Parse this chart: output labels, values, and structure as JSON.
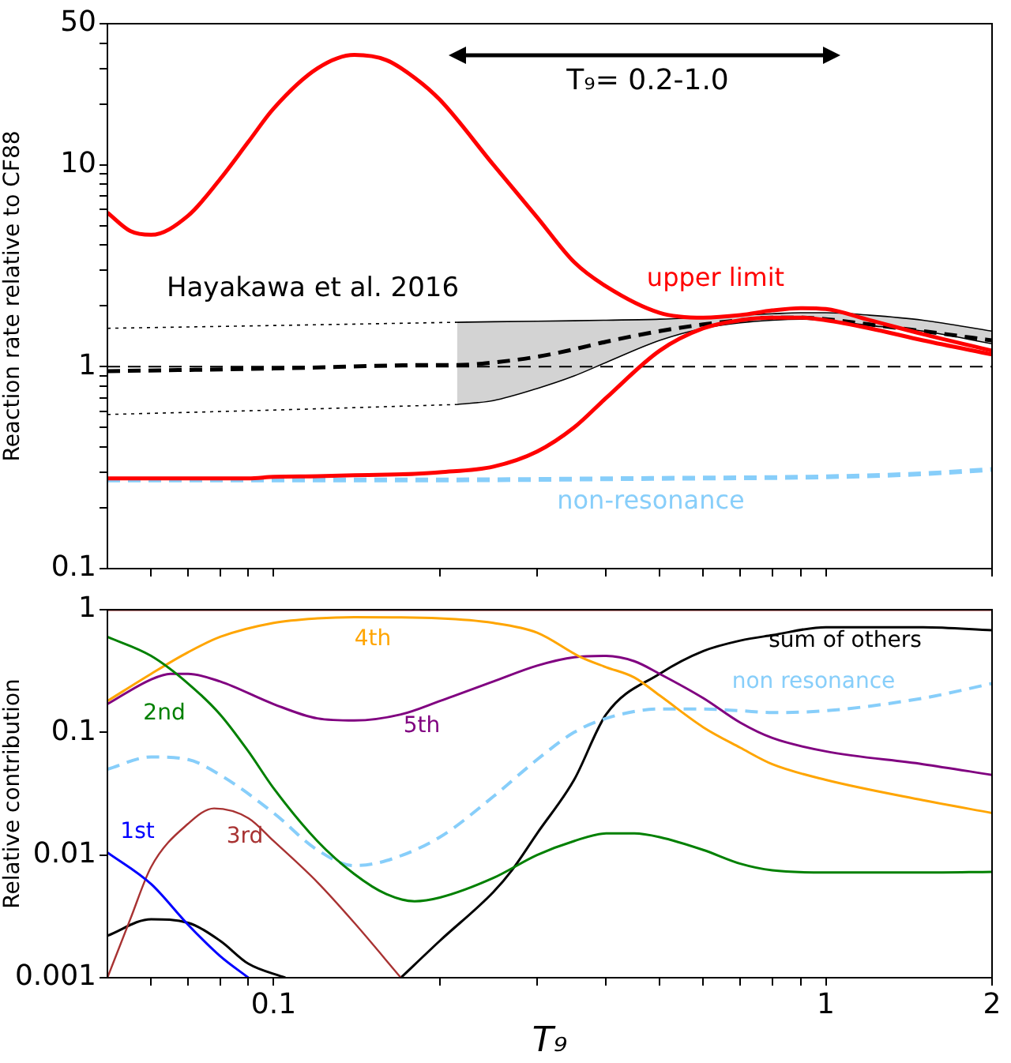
{
  "chart_data": [
    {
      "type": "line",
      "ylabel": "Reaction rate relative to CF88",
      "log": "xy",
      "xlim": [
        0.05,
        2
      ],
      "ylim": [
        0.1,
        50
      ],
      "xticks": [
        {
          "value": 0.06,
          "label": null
        },
        {
          "value": 0.07,
          "label": null
        },
        {
          "value": 0.08,
          "label": null
        },
        {
          "value": 0.09,
          "label": null
        },
        0.1,
        {
          "value": 0.2,
          "label": null
        },
        {
          "value": 0.3,
          "label": null
        },
        {
          "value": 0.4,
          "label": null
        },
        {
          "value": 0.5,
          "label": null
        },
        {
          "value": 0.6,
          "label": null
        },
        {
          "value": 0.7,
          "label": null
        },
        {
          "value": 0.8,
          "label": null
        },
        {
          "value": 0.9,
          "label": null
        },
        1,
        2
      ],
      "yticks": [
        0.1,
        {
          "value": 0.2,
          "label": null
        },
        {
          "value": 0.3,
          "label": null
        },
        {
          "value": 0.4,
          "label": null
        },
        {
          "value": 0.5,
          "label": null
        },
        {
          "value": 0.6,
          "label": null
        },
        {
          "value": 0.7,
          "label": null
        },
        {
          "value": 0.8,
          "label": null
        },
        {
          "value": 0.9,
          "label": null
        },
        1,
        {
          "value": 2,
          "label": null
        },
        {
          "value": 3,
          "label": null
        },
        {
          "value": 4,
          "label": null
        },
        {
          "value": 5,
          "label": null
        },
        {
          "value": 6,
          "label": null
        },
        {
          "value": 7,
          "label": null
        },
        {
          "value": 8,
          "label": null
        },
        {
          "value": 9,
          "label": null
        },
        10,
        {
          "value": 20,
          "label": null
        },
        {
          "value": 30,
          "label": null
        },
        {
          "value": 40,
          "label": null
        },
        50
      ],
      "tick_labels": "y",
      "grid": false,
      "legend": false,
      "marker": "none",
      "ref_lines": [
        {
          "axis": "y",
          "value": 1,
          "color": "#000000",
          "line_style": "dashed"
        }
      ],
      "annotations": [
        "Hayakawa et al. 2016",
        "T₉= 0.2-1.0"
      ],
      "series": [
        {
          "name": "upper limit",
          "color": "#ff0000",
          "line_style": "solid",
          "x": [
            0.05,
            0.055,
            0.06,
            0.07,
            0.08,
            0.09,
            0.1,
            0.12,
            0.14,
            0.16,
            0.18,
            0.2,
            0.25,
            0.3,
            0.35,
            0.4,
            0.5,
            0.6,
            0.7,
            0.8,
            0.9,
            1.0,
            1.2,
            1.5,
            2.0
          ],
          "values": [
            5.8,
            4.7,
            4.5,
            5.6,
            8.5,
            13,
            19,
            30,
            35,
            33,
            27,
            21,
            10,
            5.5,
            3.3,
            2.5,
            1.85,
            1.75,
            1.8,
            1.9,
            1.95,
            1.93,
            1.7,
            1.45,
            1.2
          ]
        },
        {
          "color": "#ff0000",
          "line_style": "solid",
          "x": [
            0.05,
            0.055,
            0.06,
            0.07,
            0.08,
            0.09,
            0.1,
            0.12,
            0.14,
            0.16,
            0.18,
            0.2,
            0.25,
            0.3,
            0.35,
            0.4,
            0.5,
            0.6,
            0.7,
            0.8,
            0.9,
            1.0,
            1.2,
            1.5,
            2.0
          ],
          "values": [
            0.28,
            0.28,
            0.28,
            0.28,
            0.28,
            0.28,
            0.285,
            0.287,
            0.29,
            0.292,
            0.295,
            0.3,
            0.32,
            0.38,
            0.5,
            0.7,
            1.2,
            1.55,
            1.7,
            1.75,
            1.75,
            1.7,
            1.55,
            1.35,
            1.15
          ]
        },
        {
          "color": "#000000",
          "line_style": "dashed",
          "x": [
            0.05,
            0.1,
            0.2,
            0.215,
            0.25,
            0.3,
            0.35,
            0.4,
            0.5,
            0.6,
            0.7,
            0.8,
            0.9,
            1.0,
            1.2,
            1.5,
            2.0
          ],
          "values": [
            0.95,
            0.98,
            1.02,
            1.02,
            1.05,
            1.12,
            1.22,
            1.33,
            1.5,
            1.62,
            1.7,
            1.75,
            1.75,
            1.72,
            1.62,
            1.5,
            1.35
          ],
          "lower": [
            null,
            null,
            null,
            0.65,
            0.68,
            0.78,
            0.9,
            1.05,
            1.35,
            1.55,
            1.65,
            1.7,
            1.72,
            1.7,
            1.6,
            1.5,
            1.3
          ],
          "upper": [
            null,
            null,
            null,
            1.66,
            1.67,
            1.68,
            1.69,
            1.7,
            1.72,
            1.76,
            1.8,
            1.83,
            1.85,
            1.85,
            1.8,
            1.7,
            1.5
          ]
        },
        {
          "color": "#000000",
          "line_style": "dotted",
          "x": [
            0.05,
            0.1,
            0.215
          ],
          "values": [
            1.55,
            1.6,
            1.66
          ]
        },
        {
          "color": "#000000",
          "line_style": "solid",
          "x": [
            0.215,
            0.25,
            0.3,
            0.35,
            0.4,
            0.5,
            0.6,
            0.7,
            0.8,
            0.9,
            1.0,
            1.2,
            1.5,
            2.0
          ],
          "values": [
            1.66,
            1.67,
            1.68,
            1.69,
            1.7,
            1.72,
            1.76,
            1.8,
            1.83,
            1.85,
            1.85,
            1.8,
            1.7,
            1.5
          ]
        },
        {
          "color": "#000000",
          "line_style": "dotted",
          "x": [
            0.05,
            0.1,
            0.215
          ],
          "values": [
            0.58,
            0.61,
            0.65
          ]
        },
        {
          "color": "#000000",
          "line_style": "solid",
          "x": [
            0.215,
            0.25,
            0.3,
            0.35,
            0.4,
            0.5,
            0.6,
            0.7,
            0.8,
            0.9,
            1.0,
            1.2,
            1.5,
            2.0
          ],
          "values": [
            0.65,
            0.68,
            0.78,
            0.9,
            1.05,
            1.35,
            1.55,
            1.65,
            1.7,
            1.72,
            1.7,
            1.6,
            1.5,
            1.3
          ]
        },
        {
          "name": "non-resonance",
          "color": "#87cefa",
          "line_style": "dashed",
          "x": [
            0.05,
            0.1,
            0.2,
            0.5,
            1.0,
            1.5,
            2.0
          ],
          "values": [
            0.275,
            0.275,
            0.275,
            0.28,
            0.285,
            0.295,
            0.31
          ]
        }
      ]
    },
    {
      "type": "line",
      "xlabel": "T₉",
      "ylabel": "Relative contribution",
      "log": "xy",
      "xlim": [
        0.05,
        2
      ],
      "ylim": [
        0.001,
        1
      ],
      "xticks": [
        {
          "value": 0.06,
          "label": null
        },
        {
          "value": 0.07,
          "label": null
        },
        {
          "value": 0.08,
          "label": null
        },
        {
          "value": 0.09,
          "label": null
        },
        0.1,
        {
          "value": 0.2,
          "label": null
        },
        {
          "value": 0.3,
          "label": null
        },
        {
          "value": 0.4,
          "label": null
        },
        {
          "value": 0.5,
          "label": null
        },
        {
          "value": 0.6,
          "label": null
        },
        {
          "value": 0.7,
          "label": null
        },
        {
          "value": 0.8,
          "label": null
        },
        {
          "value": 0.9,
          "label": null
        },
        1,
        2
      ],
      "yticks": [
        0.001,
        0.01,
        0.1,
        1
      ],
      "grid": false,
      "legend": false,
      "marker": "none",
      "series": [
        {
          "name": "1st",
          "color": "#0000ff",
          "line_style": "solid",
          "x": [
            0.05,
            0.06,
            0.07,
            0.08,
            0.09
          ],
          "values": [
            0.0105,
            0.0058,
            0.0027,
            0.0015,
            0.001
          ]
        },
        {
          "name": "2nd",
          "color": "#008000",
          "line_style": "solid",
          "x": [
            0.05,
            0.06,
            0.07,
            0.08,
            0.09,
            0.1,
            0.12,
            0.14,
            0.16,
            0.18,
            0.2,
            0.25,
            0.3,
            0.35,
            0.4,
            0.45,
            0.5,
            0.6,
            0.7,
            0.8,
            1.0,
            1.5,
            2.0
          ],
          "values": [
            0.6,
            0.42,
            0.25,
            0.14,
            0.07,
            0.035,
            0.013,
            0.007,
            0.0048,
            0.0042,
            0.0045,
            0.0065,
            0.01,
            0.013,
            0.015,
            0.015,
            0.014,
            0.011,
            0.0085,
            0.0075,
            0.0072,
            0.0072,
            0.0073
          ]
        },
        {
          "name": "3rd",
          "color": "#a83232",
          "line_style": "solid",
          "x": [
            0.05,
            0.055,
            0.06,
            0.07,
            0.078,
            0.09,
            0.1,
            0.12,
            0.14,
            0.17
          ],
          "values": [
            0.001,
            0.003,
            0.008,
            0.018,
            0.024,
            0.02,
            0.013,
            0.006,
            0.0028,
            0.001
          ]
        },
        {
          "name": "4th",
          "color": "#ffa500",
          "line_style": "solid",
          "x": [
            0.05,
            0.06,
            0.07,
            0.08,
            0.1,
            0.12,
            0.14,
            0.2,
            0.25,
            0.3,
            0.36,
            0.4,
            0.45,
            0.5,
            0.6,
            0.7,
            0.8,
            1.0,
            1.5,
            2.0
          ],
          "values": [
            0.18,
            0.3,
            0.45,
            0.6,
            0.78,
            0.85,
            0.87,
            0.85,
            0.78,
            0.65,
            0.41,
            0.34,
            0.28,
            0.2,
            0.11,
            0.075,
            0.055,
            0.041,
            0.028,
            0.022
          ]
        },
        {
          "name": "5th",
          "color": "#800080",
          "line_style": "solid",
          "x": [
            0.05,
            0.06,
            0.065,
            0.07,
            0.08,
            0.1,
            0.12,
            0.14,
            0.17,
            0.2,
            0.25,
            0.3,
            0.35,
            0.4,
            0.45,
            0.5,
            0.6,
            0.7,
            0.8,
            1.0,
            1.5,
            2.0
          ],
          "values": [
            0.17,
            0.27,
            0.3,
            0.3,
            0.26,
            0.17,
            0.13,
            0.125,
            0.14,
            0.18,
            0.26,
            0.35,
            0.41,
            0.42,
            0.38,
            0.3,
            0.19,
            0.12,
            0.09,
            0.07,
            0.055,
            0.045
          ]
        },
        {
          "name": "non resonance",
          "color": "#87cefa",
          "line_style": "dashed",
          "x": [
            0.05,
            0.06,
            0.07,
            0.08,
            0.1,
            0.12,
            0.14,
            0.16,
            0.2,
            0.25,
            0.3,
            0.35,
            0.4,
            0.5,
            0.6,
            0.7,
            0.8,
            1.0,
            1.5,
            2.0
          ],
          "values": [
            0.05,
            0.063,
            0.06,
            0.045,
            0.022,
            0.011,
            0.0082,
            0.009,
            0.014,
            0.03,
            0.06,
            0.1,
            0.13,
            0.155,
            0.155,
            0.15,
            0.145,
            0.15,
            0.19,
            0.25
          ]
        },
        {
          "name": "sum of others",
          "color": "#000000",
          "line_style": "solid",
          "x": [
            0.05,
            0.06,
            0.07,
            0.08,
            0.09,
            0.105,
            0.12,
            0.17,
            0.2,
            0.25,
            0.27,
            0.3,
            0.35,
            0.4,
            0.5,
            0.6,
            0.7,
            0.8,
            1.0,
            1.5,
            2.0
          ],
          "values": [
            0.0022,
            0.003,
            0.0028,
            0.002,
            0.0013,
            0.001,
            null,
            0.001,
            0.002,
            0.005,
            0.0075,
            0.015,
            0.041,
            0.14,
            0.3,
            0.46,
            0.56,
            0.62,
            0.72,
            0.72,
            0.68
          ]
        },
        {
          "color": "#8b0000",
          "line_style": "solid",
          "x": [
            0.05,
            2.0
          ],
          "values": [
            1,
            1
          ]
        }
      ]
    }
  ]
}
